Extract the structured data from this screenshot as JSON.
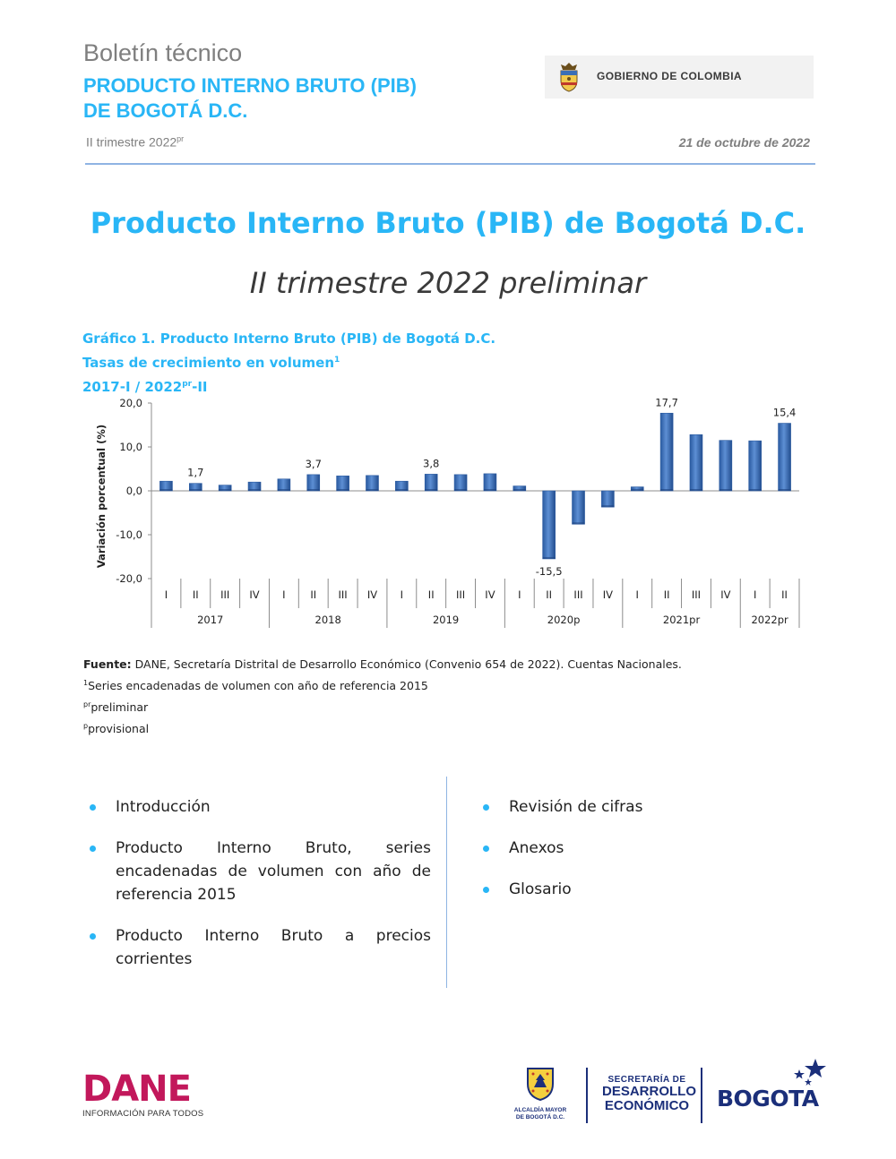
{
  "header": {
    "kicker": "Boletín técnico",
    "title_line1": "PRODUCTO INTERNO BRUTO (PIB)",
    "title_line2": "DE BOGOTÁ D.C.",
    "period": "II trimestre 2022",
    "period_sup": "pr",
    "date": "21 de octubre de 2022",
    "gov_label": "GOBIERNO DE COLOMBIA"
  },
  "main": {
    "title": "Producto Interno Bruto (PIB) de Bogotá D.C.",
    "subtitle": "II trimestre 2022 preliminar"
  },
  "chart_caption": {
    "line1": "Gráfico 1. Producto Interno Bruto (PIB) de Bogotá D.C.",
    "line2": "Tasas de crecimiento en volumen",
    "line2_sup": "1",
    "line3_a": "2017-I / 2022",
    "line3_sup": "pr",
    "line3_b": "-II"
  },
  "chart_data": {
    "type": "bar",
    "ylabel": "Variación porcentual (%)",
    "ylim": [
      -20,
      20
    ],
    "yticks": [
      -20,
      -10,
      0,
      10,
      20
    ],
    "ytick_labels": [
      "-20,0",
      "-10,0",
      "0,0",
      "10,0",
      "20,0"
    ],
    "categories": [
      "I",
      "II",
      "III",
      "IV",
      "I",
      "II",
      "III",
      "IV",
      "I",
      "II",
      "III",
      "IV",
      "I",
      "II",
      "III",
      "IV",
      "I",
      "II",
      "III",
      "IV",
      "I",
      "II"
    ],
    "groups": [
      {
        "label": "2017",
        "count": 4
      },
      {
        "label": "2018",
        "count": 4
      },
      {
        "label": "2019",
        "count": 4
      },
      {
        "label": "2020p",
        "count": 4
      },
      {
        "label": "2021pr",
        "count": 4
      },
      {
        "label": "2022pr",
        "count": 2
      }
    ],
    "values": [
      2.2,
      1.7,
      1.3,
      2.0,
      2.7,
      3.7,
      3.4,
      3.5,
      2.2,
      3.8,
      3.7,
      3.9,
      1.1,
      -15.5,
      -7.6,
      -3.7,
      0.9,
      17.7,
      12.8,
      11.5,
      11.4,
      15.4
    ],
    "data_labels": [
      {
        "index": 1,
        "text": "1,7"
      },
      {
        "index": 5,
        "text": "3,7"
      },
      {
        "index": 9,
        "text": "3,8"
      },
      {
        "index": 13,
        "text": "-15,5"
      },
      {
        "index": 17,
        "text": "17,7"
      },
      {
        "index": 21,
        "text": "15,4"
      }
    ],
    "bar_color": "#3f73b8",
    "grid": false
  },
  "notes": {
    "source_label": "Fuente:",
    "source_text": " DANE, Secretaría Distrital de Desarrollo Económico (Convenio 654 de 2022). Cuentas Nacionales.",
    "note1_sup": "1",
    "note1_text": "Series encadenadas de volumen con año de referencia 2015",
    "note2_sup": "pr",
    "note2_text": "preliminar",
    "note3_sup": "p",
    "note3_text": "provisional"
  },
  "toc": {
    "left": [
      "Introducción",
      "Producto Interno Bruto, series encadenadas de volumen con año de referencia 2015",
      "Producto Interno Bruto a precios corrientes"
    ],
    "right": [
      "Revisión de cifras",
      "Anexos",
      "Glosario"
    ]
  },
  "footer": {
    "dane_word": "DANE",
    "dane_tag": "INFORMACIÓN PARA TODOS",
    "alcaldia_l1": "ALCALDÍA MAYOR",
    "alcaldia_l2": "DE BOGOTÁ D.C.",
    "sde_l1": "SECRETARÍA DE",
    "sde_l2": "DESARROLLO",
    "sde_l3": "ECONÓMICO",
    "bogota_word": "BOGOTA"
  },
  "colors": {
    "accent": "#29b6f6",
    "rule": "#8fb4e3",
    "dane": "#c2185b",
    "navy": "#1b2f7a"
  }
}
